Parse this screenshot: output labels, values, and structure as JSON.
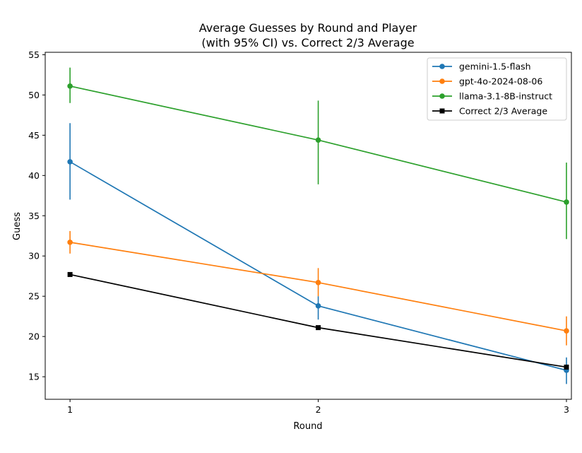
{
  "chart_data": {
    "type": "line",
    "title_line1": "Average Guesses by Round and Player",
    "title_line2": "(with 95% CI) vs. Correct 2/3 Average",
    "xlabel": "Round",
    "ylabel": "Guess",
    "x": [
      1,
      2,
      3
    ],
    "x_ticks": [
      "1",
      "2",
      "3"
    ],
    "y_ticks": [
      "15",
      "20",
      "25",
      "30",
      "35",
      "40",
      "45",
      "50",
      "55"
    ],
    "xlim": [
      0.9,
      3.02
    ],
    "ylim": [
      12.2,
      55.3
    ],
    "legend_position": "top-right",
    "series": [
      {
        "name": "gemini-1.5-flash",
        "color": "#1f77b4",
        "marker": "circle",
        "values": [
          41.7,
          23.8,
          15.8
        ],
        "ci_low": [
          37.0,
          22.1,
          14.1
        ],
        "ci_high": [
          46.5,
          25.0,
          17.4
        ]
      },
      {
        "name": "gpt-4o-2024-08-06",
        "color": "#ff7f0e",
        "marker": "circle",
        "values": [
          31.7,
          26.7,
          20.7
        ],
        "ci_low": [
          30.3,
          25.0,
          18.9
        ],
        "ci_high": [
          33.1,
          28.5,
          22.5
        ]
      },
      {
        "name": "llama-3.1-8B-instruct",
        "color": "#2ca02c",
        "marker": "circle",
        "values": [
          51.1,
          44.4,
          36.7
        ],
        "ci_low": [
          49.0,
          38.9,
          32.1
        ],
        "ci_high": [
          53.4,
          49.3,
          41.6
        ]
      },
      {
        "name": "Correct 2/3 Average",
        "color": "#000000",
        "marker": "square",
        "values": [
          27.7,
          21.1,
          16.2
        ]
      }
    ]
  }
}
